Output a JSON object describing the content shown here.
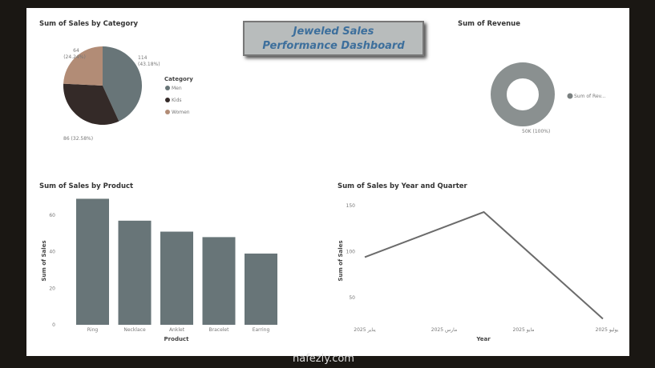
{
  "dashboard": {
    "title_line1": "Jeweled Sales",
    "title_line2": "Performance Dashboard"
  },
  "watermark": "nafezly.com",
  "colors": {
    "men": "#687578",
    "kids": "#342a28",
    "women": "#b28c76",
    "bar": "#687578",
    "line": "#6b6b6b"
  },
  "chart_data": [
    {
      "type": "pie",
      "title": "Sum of Sales by Category",
      "legend_title": "Category",
      "legend_position": "right",
      "categories": [
        "Men",
        "Kids",
        "Women"
      ],
      "values": [
        114,
        86,
        64
      ],
      "labels": [
        "114",
        "86 (32.58%)",
        "64"
      ],
      "pct_labels": [
        "(43.18%)",
        "",
        "(24.24%)"
      ]
    },
    {
      "type": "pie",
      "subtype": "donut",
      "title": "Sum of Revenue",
      "categories": [
        "Sum of Rev..."
      ],
      "values": [
        50000
      ],
      "labels": [
        "50K (100%)"
      ],
      "legend_position": "right"
    },
    {
      "type": "bar",
      "title": "Sum of Sales by Product",
      "xlabel": "Product",
      "ylabel": "Sum of Sales",
      "categories": [
        "Ring",
        "Necklace",
        "Anklet",
        "Bracelet",
        "Earring"
      ],
      "values": [
        69,
        57,
        51,
        48,
        39
      ],
      "ylim": [
        0,
        70
      ],
      "yticks": [
        0,
        20,
        40,
        60
      ],
      "grid": false
    },
    {
      "type": "line",
      "title": "Sum of Sales by Year and Quarter",
      "xlabel": "Year",
      "ylabel": "Sum of Sales",
      "x": [
        "يناير 2025",
        "أبريل 2025",
        "يوليو 2025"
      ],
      "values": [
        94,
        143,
        27
      ],
      "xticks": [
        "يناير 2025",
        "مارس 2025",
        "مايو 2025",
        "يوليو 2025"
      ],
      "yticks": [
        50,
        100,
        150
      ],
      "ylim": [
        10,
        155
      ],
      "grid": false
    }
  ]
}
